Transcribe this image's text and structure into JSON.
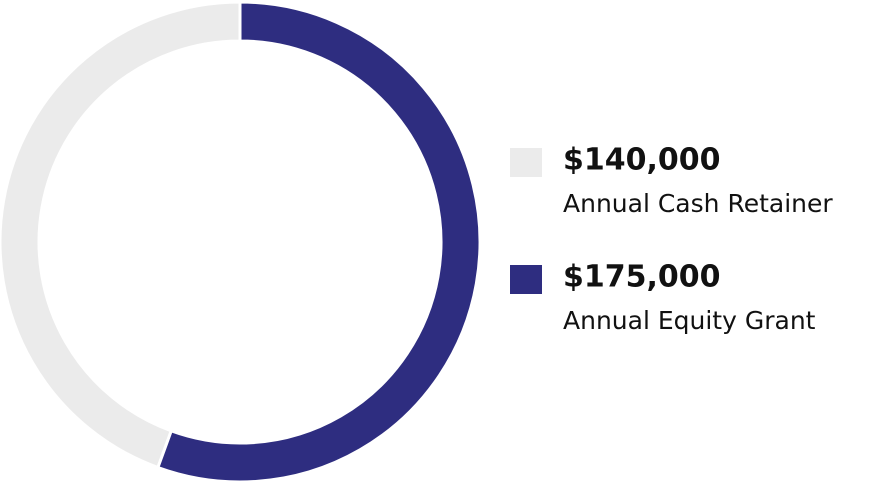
{
  "chart_data": {
    "type": "donut",
    "categories": [
      "Annual Cash Retainer",
      "Annual Equity Grant"
    ],
    "values": [
      140000,
      175000
    ],
    "value_labels": [
      "$140,000",
      "$175,000"
    ],
    "colors": [
      "#ebebeb",
      "#2e2d80"
    ]
  }
}
